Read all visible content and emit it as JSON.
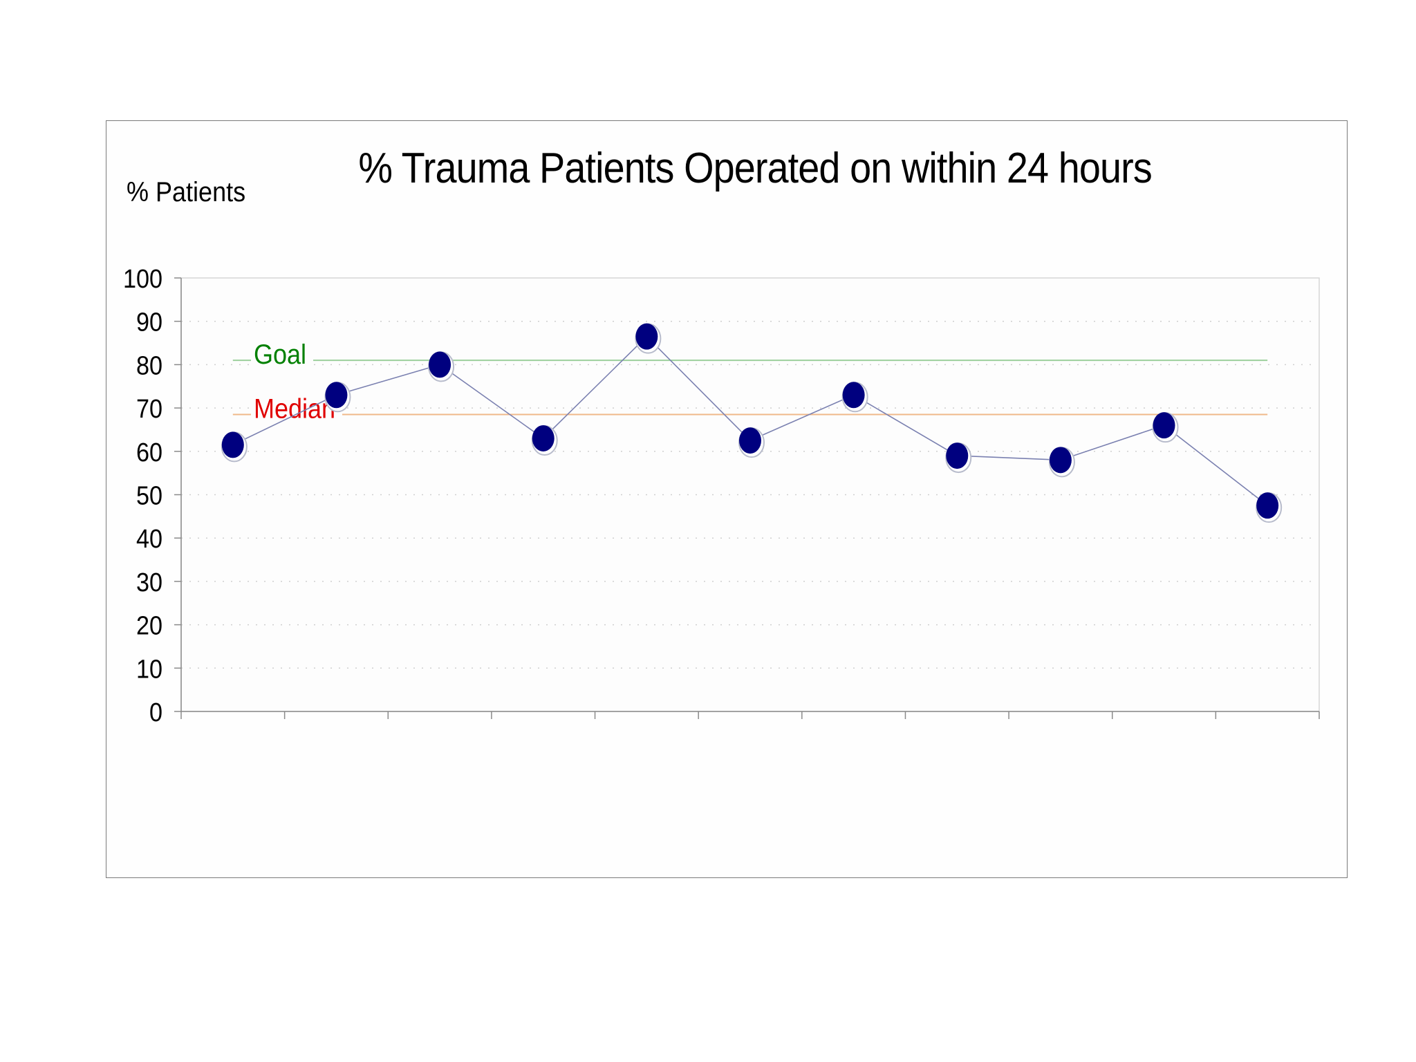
{
  "chart_data": {
    "type": "line",
    "title": "% Trauma Patients Operated on within 24 hours",
    "xlabel": "",
    "ylabel": "% Patients",
    "ylim": [
      0,
      100
    ],
    "yticks": [
      0,
      10,
      20,
      30,
      40,
      50,
      60,
      70,
      80,
      90,
      100
    ],
    "x": [
      1,
      2,
      3,
      4,
      5,
      6,
      7,
      8,
      9,
      10,
      11
    ],
    "series": [
      {
        "values": [
          61.5,
          73,
          80,
          63,
          86.5,
          62.5,
          73,
          59,
          58,
          66,
          47.5
        ],
        "color": "#00007f"
      }
    ],
    "reference_lines": [
      {
        "label": "Goal",
        "value": 81,
        "color": "#008000",
        "line_color": "#9ccf9c"
      },
      {
        "label": "Median",
        "value": 68.5,
        "color": "#e00000",
        "line_color": "#f0b98a"
      }
    ],
    "grid": "dotted horizontal",
    "legend": "none"
  }
}
